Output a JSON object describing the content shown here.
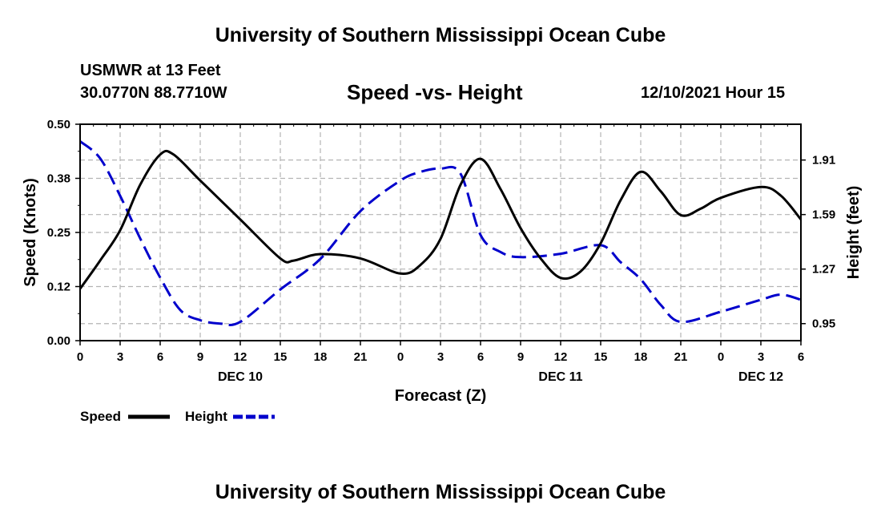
{
  "header": {
    "title": "University of Southern Mississippi Ocean Cube",
    "station": "USMWR at 13 Feet",
    "coords": "30.0770N  88.7710W",
    "subtitle": "Speed -vs- Height",
    "date": "12/10/2021 Hour 15"
  },
  "footer": {
    "title": "University of Southern Mississippi Ocean Cube"
  },
  "chart_data": {
    "type": "line",
    "title": "Speed -vs- Height",
    "xlabel": "Forecast (Z)",
    "ylabel": "Speed (Knots)",
    "y2label": "Height (feet)",
    "xlim": [
      0,
      54
    ],
    "ylim": [
      0,
      0.5
    ],
    "y2lim": [
      0.85,
      2.12
    ],
    "x_ticks": [
      0,
      3,
      6,
      9,
      12,
      15,
      18,
      21,
      24,
      27,
      30,
      33,
      36,
      39,
      42,
      45,
      48,
      51,
      54
    ],
    "x_tick_labels": [
      "0",
      "3",
      "6",
      "9",
      "12",
      "15",
      "18",
      "21",
      "0",
      "3",
      "6",
      "9",
      "12",
      "15",
      "18",
      "21",
      "0",
      "3",
      "6"
    ],
    "date_labels": [
      {
        "x": 12,
        "label": "DEC 10"
      },
      {
        "x": 36,
        "label": "DEC 11"
      },
      {
        "x": 51,
        "label": "DEC 12"
      }
    ],
    "y_ticks": [
      0.0,
      0.125,
      0.25,
      0.375,
      0.5
    ],
    "y_tick_labels": [
      "0.00",
      "0.12",
      "0.25",
      "0.38",
      "0.50"
    ],
    "y2_ticks": [
      0.95,
      1.27,
      1.59,
      1.91
    ],
    "y2_tick_labels": [
      "0.95",
      "1.27",
      "1.59",
      "1.91"
    ],
    "grid": true,
    "legend": {
      "position": "bottom-left",
      "entries": [
        {
          "name": "Speed",
          "color": "#000000",
          "dash": "solid"
        },
        {
          "name": "Height",
          "color": "#0000cc",
          "dash": "dashed"
        }
      ]
    },
    "series": [
      {
        "name": "Speed",
        "axis": "left",
        "color": "#000000",
        "dash": "solid",
        "x": [
          0,
          1.5,
          3,
          4.5,
          6,
          7,
          9,
          12,
          15,
          16,
          18,
          21,
          24,
          25.5,
          27,
          28.5,
          30,
          31.5,
          33,
          34.5,
          36,
          37.5,
          39,
          40.5,
          42,
          43.5,
          45,
          46.5,
          48,
          51,
          52.5,
          54
        ],
        "y": [
          0.12,
          0.185,
          0.255,
          0.36,
          0.43,
          0.43,
          0.37,
          0.28,
          0.19,
          0.185,
          0.2,
          0.19,
          0.155,
          0.175,
          0.235,
          0.36,
          0.42,
          0.35,
          0.26,
          0.19,
          0.145,
          0.16,
          0.225,
          0.325,
          0.39,
          0.345,
          0.29,
          0.305,
          0.33,
          0.355,
          0.335,
          0.28
        ]
      },
      {
        "name": "Height",
        "axis": "right",
        "color": "#0000cc",
        "dash": "dashed",
        "x": [
          0,
          1.5,
          3,
          4.5,
          6,
          7.5,
          9,
          10.5,
          12,
          15,
          18,
          21,
          24,
          25.5,
          27,
          28.5,
          30,
          31.5,
          33,
          36,
          39,
          40.5,
          42,
          43.5,
          45,
          48,
          51,
          52.5,
          54
        ],
        "y": [
          2.02,
          1.92,
          1.7,
          1.45,
          1.22,
          1.03,
          0.97,
          0.95,
          0.96,
          1.15,
          1.33,
          1.61,
          1.79,
          1.84,
          1.86,
          1.83,
          1.47,
          1.37,
          1.34,
          1.36,
          1.41,
          1.31,
          1.21,
          1.06,
          0.96,
          1.02,
          1.09,
          1.12,
          1.09
        ]
      }
    ]
  }
}
